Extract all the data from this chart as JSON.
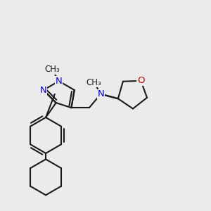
{
  "bg_color": "#ebebeb",
  "bond_color": "#1a1a1a",
  "n_color": "#0000dd",
  "o_color": "#cc0000",
  "bond_lw": 1.5,
  "font_size": 9.5,
  "fig_size": [
    3.0,
    3.0
  ],
  "dpi": 100,
  "xlim": [
    -1.5,
    5.5
  ],
  "ylim": [
    -3.8,
    3.2
  ]
}
